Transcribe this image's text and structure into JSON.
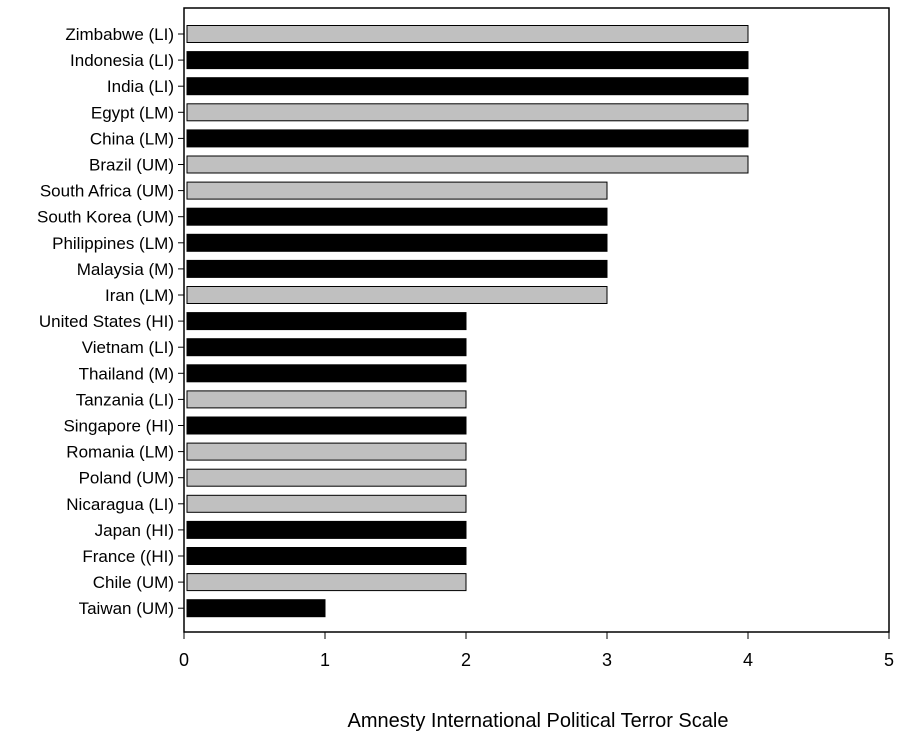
{
  "chart_data": {
    "type": "bar",
    "orientation": "horizontal",
    "xlabel": "Amnesty International Political Terror Scale",
    "xlim": [
      0,
      5
    ],
    "xticks": [
      "0",
      "1",
      "2",
      "3",
      "4",
      "5"
    ],
    "grid": false,
    "legend": false,
    "categories": [
      "Zimbabwe (LI)",
      "Indonesia (LI)",
      "India (LI)",
      "Egypt (LM)",
      "China (LM)",
      "Brazil (UM)",
      "South Africa (UM)",
      "South Korea (UM)",
      "Philippines (LM)",
      "Malaysia (M)",
      "Iran (LM)",
      "United States (HI)",
      "Vietnam (LI)",
      "Thailand (M)",
      "Tanzania (LI)",
      "Singapore (HI)",
      "Romania (LM)",
      "Poland (UM)",
      "Nicaragua (LI)",
      "Japan (HI)",
      "France ((HI)",
      "Chile (UM)",
      "Taiwan (UM)"
    ],
    "values": [
      4,
      4,
      4,
      4,
      4,
      4,
      3,
      3,
      3,
      3,
      3,
      2,
      2,
      2,
      2,
      2,
      2,
      2,
      2,
      2,
      2,
      2,
      1
    ],
    "bar_colors": [
      "#c0c0c0",
      "#000000",
      "#000000",
      "#c0c0c0",
      "#000000",
      "#c0c0c0",
      "#c0c0c0",
      "#000000",
      "#000000",
      "#000000",
      "#c0c0c0",
      "#000000",
      "#000000",
      "#000000",
      "#c0c0c0",
      "#000000",
      "#c0c0c0",
      "#c0c0c0",
      "#c0c0c0",
      "#000000",
      "#000000",
      "#c0c0c0",
      "#000000"
    ]
  }
}
